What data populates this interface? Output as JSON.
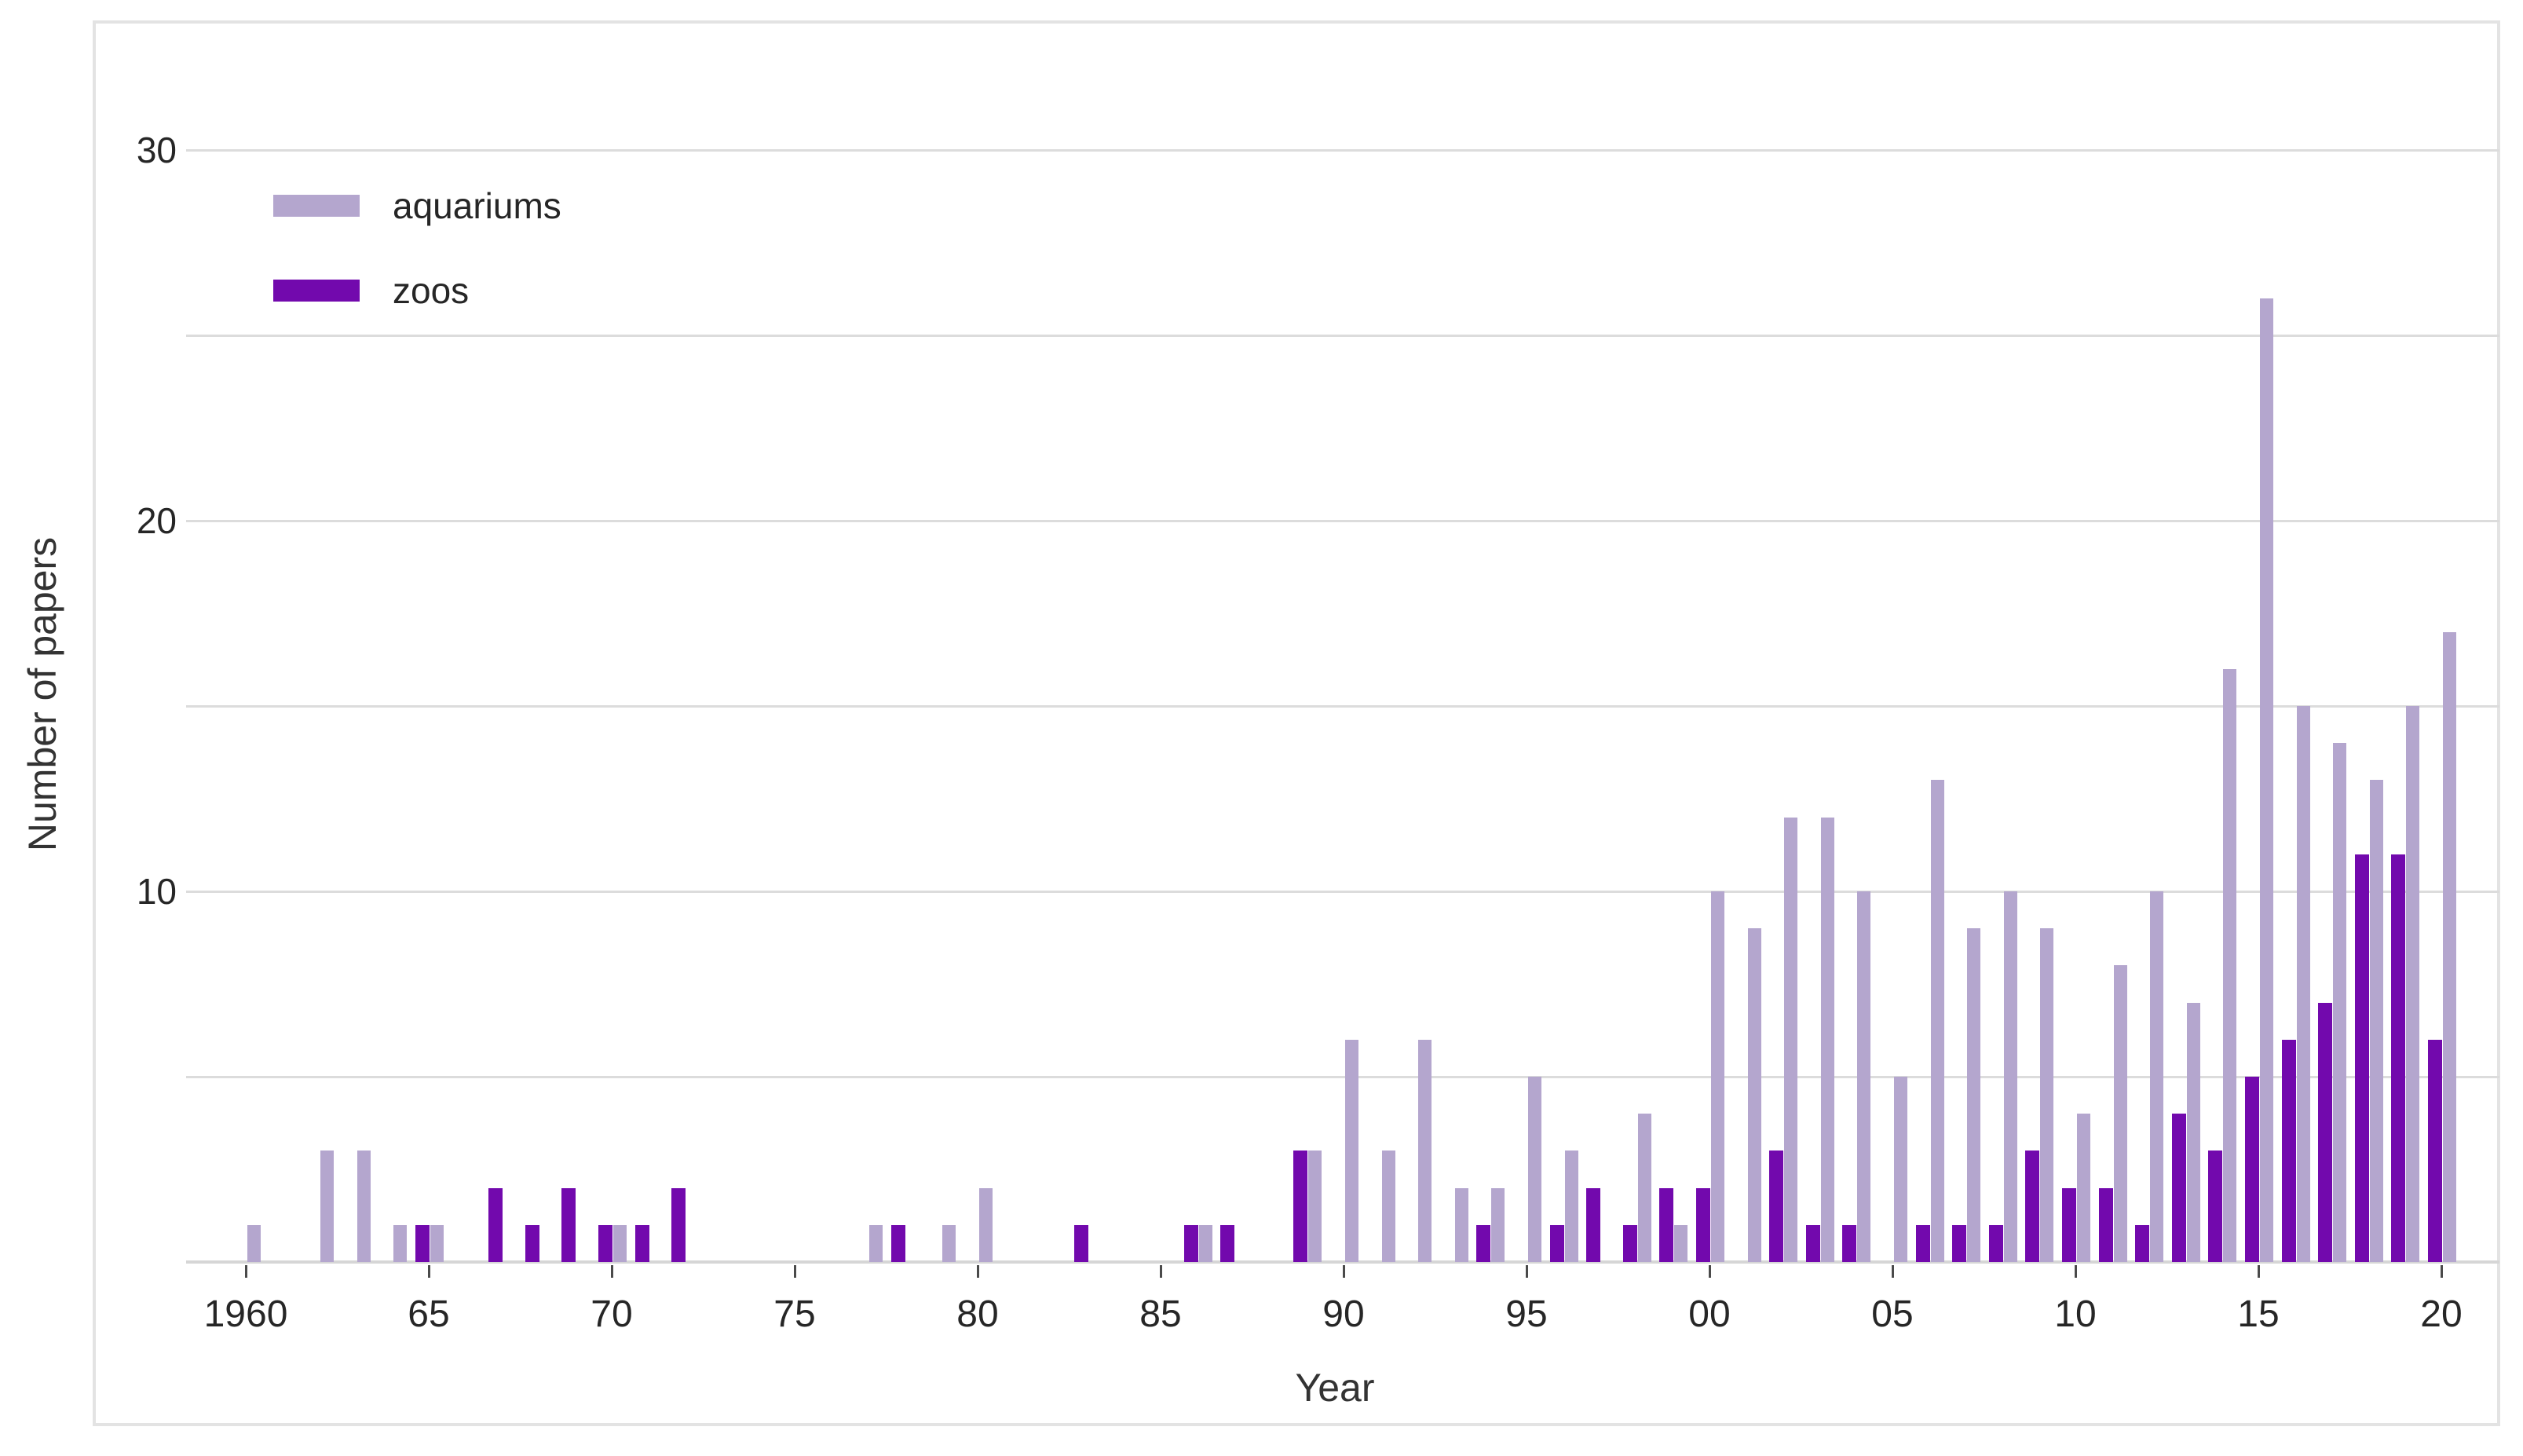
{
  "chart_data": {
    "type": "bar",
    "title": "",
    "xlabel": "Year",
    "ylabel": "Number of papers",
    "grid": "horizontal",
    "ylim": [
      0,
      30
    ],
    "grid_step": 5,
    "labeled_yticks": [
      30,
      20,
      10
    ],
    "xtick_labels": [
      "1960",
      "65",
      "70",
      "75",
      "80",
      "85",
      "90",
      "95",
      "00",
      "05",
      "10",
      "15",
      "20"
    ],
    "xtick_years": [
      1960,
      1965,
      1970,
      1975,
      1980,
      1985,
      1990,
      1995,
      2000,
      2005,
      2010,
      2015,
      2020
    ],
    "years": [
      1960,
      1961,
      1962,
      1963,
      1964,
      1965,
      1966,
      1967,
      1968,
      1969,
      1970,
      1971,
      1972,
      1973,
      1974,
      1975,
      1976,
      1977,
      1978,
      1979,
      1980,
      1981,
      1982,
      1983,
      1984,
      1985,
      1986,
      1987,
      1988,
      1989,
      1990,
      1991,
      1992,
      1993,
      1994,
      1995,
      1996,
      1997,
      1998,
      1999,
      2000,
      2001,
      2002,
      2003,
      2004,
      2005,
      2006,
      2007,
      2008,
      2009,
      2010,
      2011,
      2012,
      2013,
      2014,
      2015,
      2016,
      2017,
      2018,
      2019,
      2020
    ],
    "legend_position": "top-left",
    "series": [
      {
        "name": "aquariums",
        "color": "#b4a6ce",
        "values": [
          1,
          0,
          3,
          3,
          1,
          1,
          0,
          0,
          0,
          0,
          1,
          0,
          0,
          0,
          0,
          0,
          0,
          1,
          0,
          1,
          2,
          0,
          0,
          0,
          0,
          0,
          1,
          0,
          0,
          3,
          6,
          3,
          6,
          2,
          2,
          5,
          3,
          0,
          4,
          1,
          10,
          9,
          12,
          12,
          10,
          5,
          13,
          9,
          10,
          9,
          4,
          8,
          10,
          7,
          16,
          26,
          15,
          14,
          13,
          15,
          17
        ]
      },
      {
        "name": "zoos",
        "color": "#7209ad",
        "values": [
          0,
          0,
          0,
          0,
          0,
          1,
          0,
          2,
          1,
          2,
          1,
          1,
          2,
          0,
          0,
          0,
          0,
          0,
          1,
          0,
          0,
          0,
          0,
          1,
          0,
          0,
          1,
          1,
          0,
          3,
          0,
          0,
          0,
          0,
          1,
          0,
          1,
          2,
          1,
          2,
          2,
          0,
          3,
          1,
          1,
          0,
          1,
          1,
          1,
          3,
          2,
          2,
          1,
          4,
          3,
          5,
          6,
          7,
          11,
          11,
          6
        ]
      }
    ]
  }
}
